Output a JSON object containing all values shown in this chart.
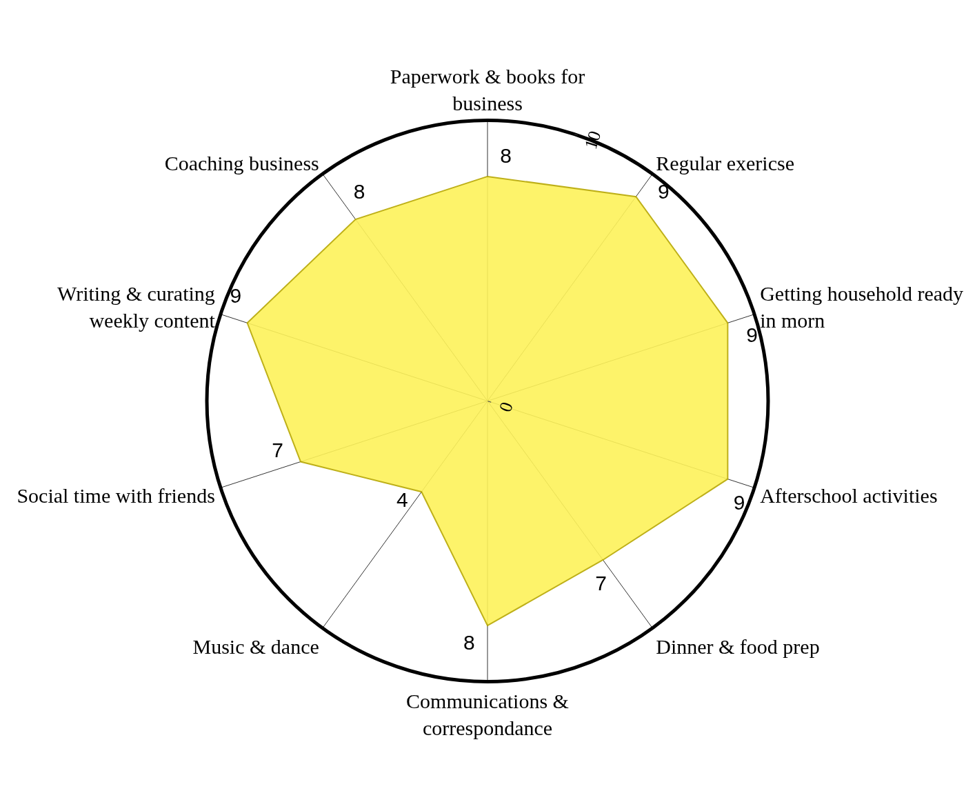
{
  "chart_data": {
    "type": "radar",
    "categories": [
      "Paperwork & books for business",
      "Regular exericse",
      "Getting household ready in morn",
      "Afterschool activities",
      "Dinner & food prep",
      "Communications & correspondance",
      "Music & dance",
      "Social time with friends",
      "Writing & curating weekly content",
      "Coaching business"
    ],
    "values": [
      8,
      9,
      9,
      9,
      7,
      8,
      4,
      7,
      9,
      8
    ],
    "color": "#fdf25a",
    "ylim": [
      0,
      10
    ],
    "yticks": [
      0,
      10
    ],
    "data_labels": true,
    "grid": true
  }
}
